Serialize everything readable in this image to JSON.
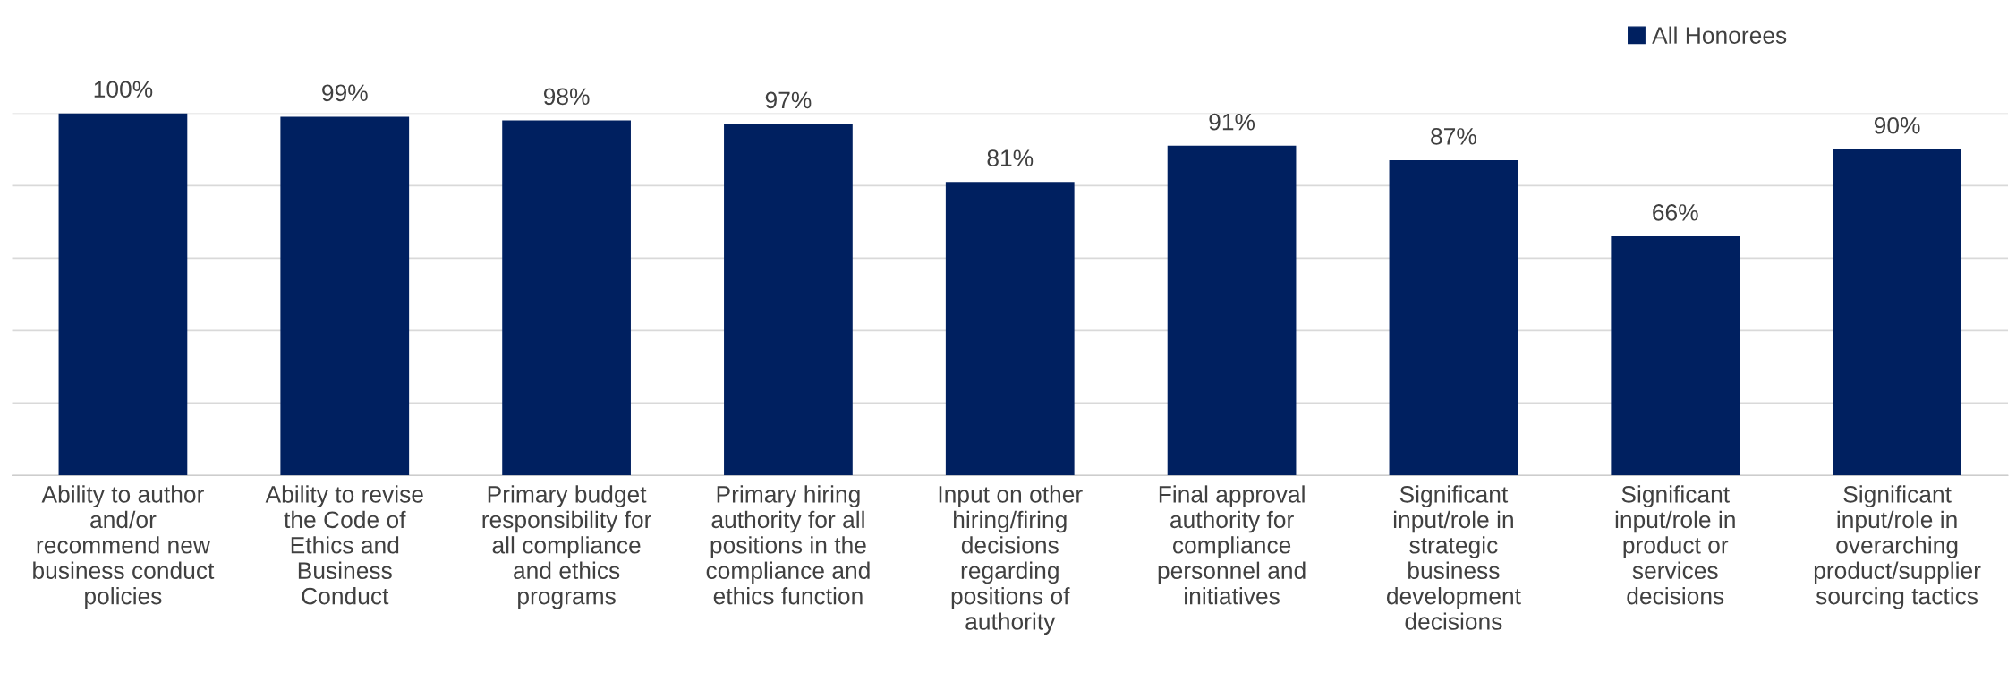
{
  "chart_data": {
    "type": "bar",
    "categories": [
      "Ability to author\nand/or\nrecommend new\nbusiness conduct\npolicies",
      "Ability to revise\nthe Code of\nEthics and\nBusiness\nConduct",
      "Primary budget\nresponsibility for\nall compliance\nand ethics\nprograms",
      "Primary hiring\nauthority for all\npositions in the\ncompliance and\nethics function",
      "Input on other\nhiring/firing\ndecisions\nregarding\npositions of\nauthority",
      "Final approval\nauthority for\ncompliance\npersonnel and\ninitiatives",
      "Significant\ninput/role in\nstrategic\nbusiness\ndevelopment\ndecisions",
      "Significant\ninput/role in\nproduct or\nservices\ndecisions",
      "Significant\ninput/role in\noverarching\nproduct/supplier\nsourcing tactics"
    ],
    "series": [
      {
        "name": "All Honorees",
        "color": "#002060",
        "values": [
          100,
          99,
          98,
          97,
          81,
          91,
          87,
          66,
          90
        ],
        "value_labels": [
          "100%",
          "99%",
          "98%",
          "97%",
          "81%",
          "91%",
          "87%",
          "66%",
          "90%"
        ]
      }
    ],
    "ylim": [
      0,
      100
    ],
    "yticks": [
      {
        "value": 0,
        "label": null
      },
      {
        "value": 20,
        "label": null
      },
      {
        "value": 40,
        "label": null
      },
      {
        "value": 60,
        "label": null
      },
      {
        "value": 80,
        "label": null
      },
      {
        "value": 100,
        "label": null
      }
    ],
    "tick_labels": "x",
    "grid": "y",
    "legend": "top right"
  }
}
